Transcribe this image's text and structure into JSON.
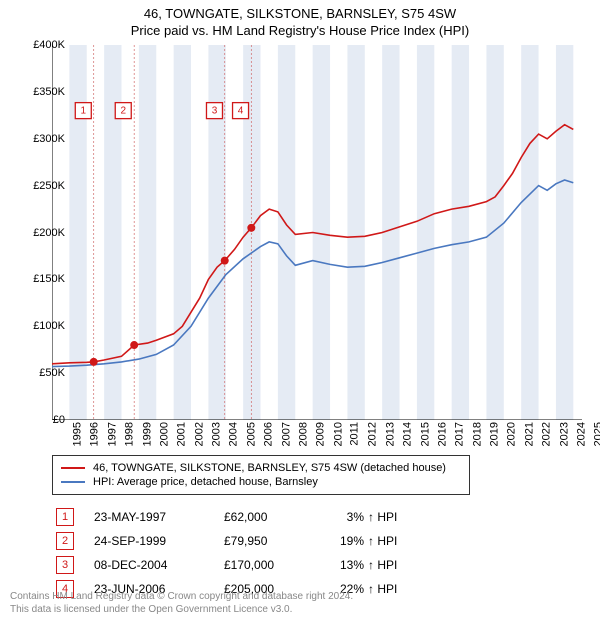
{
  "title_line1": "46, TOWNGATE, SILKSTONE, BARNSLEY, S75 4SW",
  "title_line2": "Price paid vs. HM Land Registry's House Price Index (HPI)",
  "chart": {
    "type": "line",
    "background_color": "#ffffff",
    "xlim": [
      1995,
      2025.5
    ],
    "ylim": [
      0,
      400000
    ],
    "ytick_step": 50000,
    "y_labels": [
      "£0",
      "£50K",
      "£100K",
      "£150K",
      "£200K",
      "£250K",
      "£300K",
      "£350K",
      "£400K"
    ],
    "x_ticks": [
      1995,
      1996,
      1997,
      1998,
      1999,
      2000,
      2001,
      2002,
      2003,
      2004,
      2005,
      2006,
      2007,
      2008,
      2009,
      2010,
      2011,
      2012,
      2013,
      2014,
      2015,
      2016,
      2017,
      2018,
      2019,
      2020,
      2021,
      2022,
      2023,
      2024,
      2025
    ],
    "axis_color": "#000000",
    "tick_color": "#000000",
    "band_color": "#e5ebf4",
    "sale_line_color": "#d06a6a",
    "series": [
      {
        "name": "property",
        "label": "46, TOWNGATE, SILKSTONE, BARNSLEY, S75 4SW (detached house)",
        "color": "#d01818",
        "line_width": 1.6,
        "points": [
          [
            1995.0,
            60000
          ],
          [
            1996.0,
            61000
          ],
          [
            1997.0,
            61500
          ],
          [
            1997.4,
            62000
          ],
          [
            1998.0,
            64000
          ],
          [
            1999.0,
            68000
          ],
          [
            1999.73,
            79950
          ],
          [
            2000.5,
            82000
          ],
          [
            2001.0,
            85000
          ],
          [
            2002.0,
            92000
          ],
          [
            2002.5,
            100000
          ],
          [
            2003.0,
            115000
          ],
          [
            2003.5,
            130000
          ],
          [
            2004.0,
            150000
          ],
          [
            2004.5,
            163000
          ],
          [
            2004.94,
            170000
          ],
          [
            2005.5,
            182000
          ],
          [
            2006.0,
            195000
          ],
          [
            2006.47,
            205000
          ],
          [
            2007.0,
            218000
          ],
          [
            2007.5,
            225000
          ],
          [
            2008.0,
            222000
          ],
          [
            2008.5,
            208000
          ],
          [
            2009.0,
            198000
          ],
          [
            2010.0,
            200000
          ],
          [
            2011.0,
            197000
          ],
          [
            2012.0,
            195000
          ],
          [
            2013.0,
            196000
          ],
          [
            2014.0,
            200000
          ],
          [
            2015.0,
            206000
          ],
          [
            2016.0,
            212000
          ],
          [
            2017.0,
            220000
          ],
          [
            2018.0,
            225000
          ],
          [
            2019.0,
            228000
          ],
          [
            2020.0,
            233000
          ],
          [
            2020.5,
            238000
          ],
          [
            2021.0,
            250000
          ],
          [
            2021.5,
            263000
          ],
          [
            2022.0,
            280000
          ],
          [
            2022.5,
            295000
          ],
          [
            2023.0,
            305000
          ],
          [
            2023.5,
            300000
          ],
          [
            2024.0,
            308000
          ],
          [
            2024.5,
            315000
          ],
          [
            2025.0,
            310000
          ]
        ]
      },
      {
        "name": "hpi",
        "label": "HPI: Average price, detached house, Barnsley",
        "color": "#4a78c0",
        "line_width": 1.4,
        "points": [
          [
            1995.0,
            57000
          ],
          [
            1996.0,
            57500
          ],
          [
            1997.0,
            58500
          ],
          [
            1998.0,
            60000
          ],
          [
            1999.0,
            62000
          ],
          [
            2000.0,
            65000
          ],
          [
            2001.0,
            70000
          ],
          [
            2002.0,
            80000
          ],
          [
            2003.0,
            100000
          ],
          [
            2004.0,
            130000
          ],
          [
            2005.0,
            155000
          ],
          [
            2006.0,
            172000
          ],
          [
            2007.0,
            185000
          ],
          [
            2007.5,
            190000
          ],
          [
            2008.0,
            188000
          ],
          [
            2008.5,
            175000
          ],
          [
            2009.0,
            165000
          ],
          [
            2010.0,
            170000
          ],
          [
            2011.0,
            166000
          ],
          [
            2012.0,
            163000
          ],
          [
            2013.0,
            164000
          ],
          [
            2014.0,
            168000
          ],
          [
            2015.0,
            173000
          ],
          [
            2016.0,
            178000
          ],
          [
            2017.0,
            183000
          ],
          [
            2018.0,
            187000
          ],
          [
            2019.0,
            190000
          ],
          [
            2020.0,
            195000
          ],
          [
            2021.0,
            210000
          ],
          [
            2022.0,
            232000
          ],
          [
            2023.0,
            250000
          ],
          [
            2023.5,
            245000
          ],
          [
            2024.0,
            252000
          ],
          [
            2024.5,
            256000
          ],
          [
            2025.0,
            253000
          ]
        ]
      }
    ],
    "sale_points": [
      {
        "x": 1997.4,
        "y": 62000
      },
      {
        "x": 1999.73,
        "y": 79950
      },
      {
        "x": 2004.94,
        "y": 170000
      },
      {
        "x": 2006.47,
        "y": 205000
      }
    ],
    "sale_point_color": "#d01818",
    "sale_point_radius": 4,
    "marker_positions": [
      {
        "x": 1996.8,
        "label": "1"
      },
      {
        "x": 1999.1,
        "label": "2"
      },
      {
        "x": 2004.35,
        "label": "3"
      },
      {
        "x": 2005.85,
        "label": "4"
      }
    ],
    "marker_color": "#d01818",
    "marker_y": 330000
  },
  "legend": {
    "border_color": "#333333"
  },
  "sales": [
    {
      "idx": "1",
      "date": "23-MAY-1997",
      "price": "£62,000",
      "pct": "3%",
      "arrow": "↑",
      "suffix": "HPI"
    },
    {
      "idx": "2",
      "date": "24-SEP-1999",
      "price": "£79,950",
      "pct": "19%",
      "arrow": "↑",
      "suffix": "HPI"
    },
    {
      "idx": "3",
      "date": "08-DEC-2004",
      "price": "£170,000",
      "pct": "13%",
      "arrow": "↑",
      "suffix": "HPI"
    },
    {
      "idx": "4",
      "date": "23-JUN-2006",
      "price": "£205,000",
      "pct": "22%",
      "arrow": "↑",
      "suffix": "HPI"
    }
  ],
  "attribution_line1": "Contains HM Land Registry data © Crown copyright and database right 2024.",
  "attribution_line2": "This data is licensed under the Open Government Licence v3.0.",
  "attribution_color": "#888888"
}
